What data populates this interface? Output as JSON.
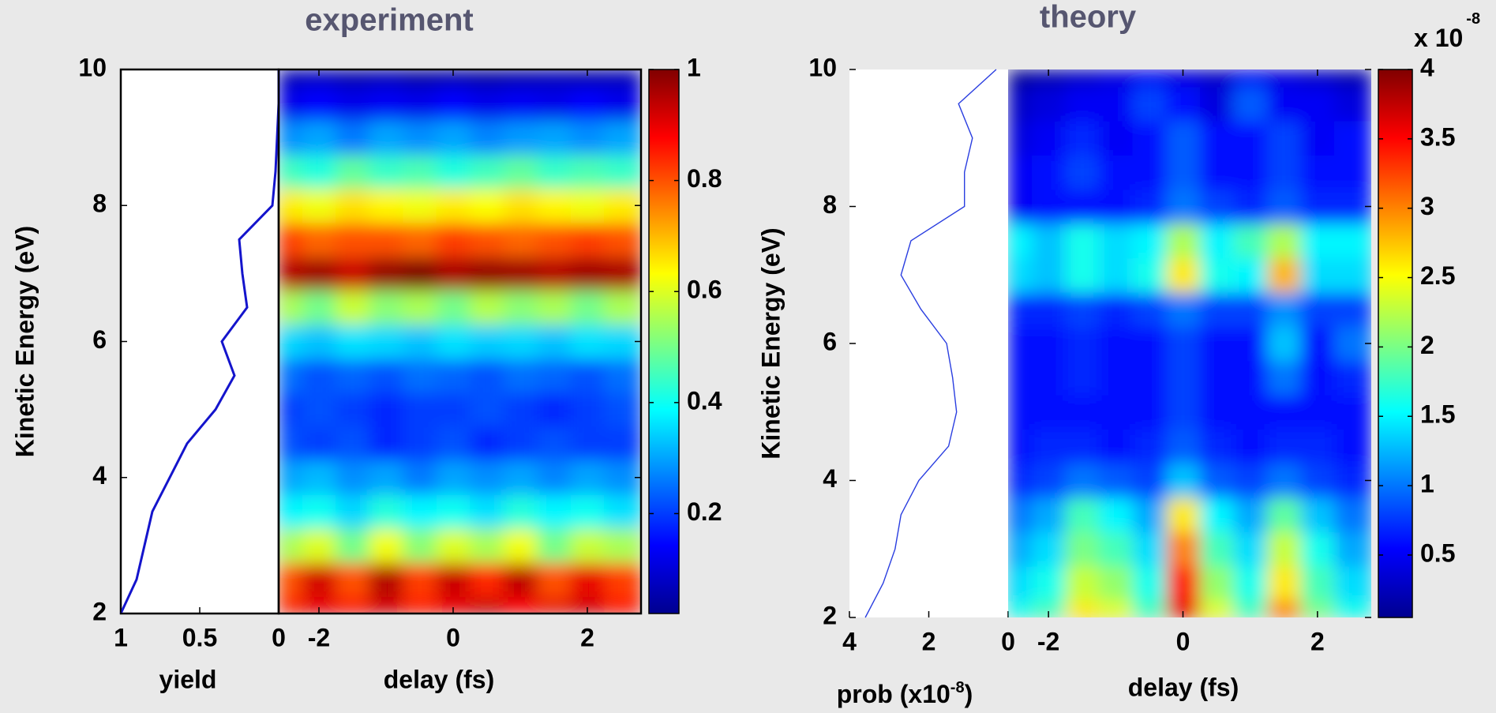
{
  "chart_data": [
    {
      "type": "line",
      "xlabel": "yield",
      "ylabel": "Kinetic Energy (eV)",
      "color": "#1414cc",
      "y": [
        2,
        2.5,
        3,
        3.5,
        4,
        4.5,
        5,
        5.5,
        6,
        6.5,
        7,
        7.5,
        8,
        8.5,
        9,
        9.5,
        10
      ],
      "values": [
        1.0,
        0.9,
        0.85,
        0.8,
        0.69,
        0.58,
        0.4,
        0.28,
        0.36,
        0.2,
        0.23,
        0.25,
        0.04,
        0.02,
        0.01,
        0.0,
        0.0
      ],
      "xlim": [
        1,
        0
      ],
      "xticks": [
        1,
        0.5,
        0
      ],
      "ylim": [
        2,
        10
      ],
      "yticks": [
        2,
        4,
        6,
        8,
        10
      ]
    },
    {
      "type": "heatmap",
      "title": "experiment",
      "xlabel": "delay (fs)",
      "colormap": "jet",
      "x": [
        -2.5,
        -2,
        -1.5,
        -1,
        -0.5,
        0,
        0.5,
        1,
        1.5,
        2,
        2.5
      ],
      "y": [
        2,
        2.5,
        3,
        3.5,
        4,
        4.5,
        5,
        5.5,
        6,
        6.5,
        7,
        7.5,
        8,
        8.5,
        9,
        9.5,
        10
      ],
      "values": [
        [
          0.85,
          0.9,
          0.88,
          0.92,
          0.86,
          0.9,
          0.93,
          0.88,
          0.9,
          0.92,
          0.87
        ],
        [
          0.8,
          0.92,
          0.8,
          0.95,
          0.82,
          0.93,
          0.84,
          0.94,
          0.8,
          0.9,
          0.82
        ],
        [
          0.55,
          0.6,
          0.5,
          0.62,
          0.52,
          0.6,
          0.55,
          0.62,
          0.5,
          0.58,
          0.55
        ],
        [
          0.38,
          0.4,
          0.35,
          0.42,
          0.38,
          0.4,
          0.36,
          0.42,
          0.38,
          0.4,
          0.36
        ],
        [
          0.3,
          0.32,
          0.28,
          0.3,
          0.26,
          0.3,
          0.28,
          0.3,
          0.27,
          0.3,
          0.28
        ],
        [
          0.22,
          0.2,
          0.22,
          0.18,
          0.2,
          0.22,
          0.18,
          0.2,
          0.22,
          0.2,
          0.2
        ],
        [
          0.2,
          0.22,
          0.2,
          0.18,
          0.2,
          0.2,
          0.22,
          0.2,
          0.18,
          0.2,
          0.22
        ],
        [
          0.25,
          0.22,
          0.24,
          0.22,
          0.25,
          0.24,
          0.22,
          0.25,
          0.24,
          0.22,
          0.25
        ],
        [
          0.35,
          0.33,
          0.36,
          0.35,
          0.33,
          0.36,
          0.34,
          0.35,
          0.33,
          0.36,
          0.35
        ],
        [
          0.55,
          0.5,
          0.58,
          0.52,
          0.55,
          0.5,
          0.56,
          0.52,
          0.55,
          0.5,
          0.55
        ],
        [
          0.95,
          0.97,
          0.93,
          0.98,
          1.0,
          0.96,
          0.98,
          0.97,
          0.95,
          0.97,
          0.96
        ],
        [
          0.82,
          0.78,
          0.8,
          0.8,
          0.78,
          0.82,
          0.8,
          0.78,
          0.8,
          0.82,
          0.8
        ],
        [
          0.65,
          0.62,
          0.66,
          0.64,
          0.62,
          0.65,
          0.63,
          0.66,
          0.64,
          0.62,
          0.65
        ],
        [
          0.45,
          0.42,
          0.48,
          0.44,
          0.46,
          0.42,
          0.45,
          0.48,
          0.44,
          0.46,
          0.44
        ],
        [
          0.28,
          0.3,
          0.26,
          0.3,
          0.28,
          0.3,
          0.27,
          0.29,
          0.3,
          0.28,
          0.3
        ],
        [
          0.12,
          0.14,
          0.12,
          0.13,
          0.12,
          0.14,
          0.12,
          0.13,
          0.12,
          0.14,
          0.12
        ],
        [
          0.06,
          0.07,
          0.05,
          0.06,
          0.04,
          0.05,
          0.04,
          0.05,
          0.06,
          0.05,
          0.06
        ]
      ],
      "xlim": [
        -2.6,
        2.8
      ],
      "xticks": [
        -2,
        0,
        2
      ],
      "ylim": [
        2,
        10
      ],
      "yticks": [
        2,
        4,
        6,
        8,
        10
      ],
      "clim": [
        0.02,
        1
      ],
      "cticks": [
        0.2,
        0.4,
        0.6,
        0.8,
        1
      ]
    },
    {
      "type": "line",
      "xlabel": {
        "text": "prob (x10",
        "sup": "-8",
        "end": ")"
      },
      "ylabel": "Kinetic Energy (eV)",
      "color": "#2a3ee0",
      "y": [
        2,
        2.5,
        3,
        3.5,
        4,
        4.5,
        5,
        5.5,
        6,
        6.5,
        7,
        7.5,
        8,
        8.5,
        9,
        9.5,
        10
      ],
      "values": [
        3.6,
        3.15,
        2.85,
        2.7,
        2.25,
        1.5,
        1.3,
        1.4,
        1.55,
        2.2,
        2.7,
        2.45,
        1.1,
        1.1,
        0.9,
        1.25,
        0.3
      ],
      "xlim": [
        4,
        0
      ],
      "xticks": [
        4,
        2,
        0
      ],
      "ylim": [
        2,
        10
      ],
      "yticks": [
        2,
        4,
        6,
        8,
        10
      ]
    },
    {
      "type": "heatmap",
      "title": "theory",
      "xlabel": "delay (fs)",
      "colormap": "jet",
      "x": [
        -2.5,
        -2,
        -1.5,
        -1,
        -0.5,
        0,
        0.5,
        1,
        1.5,
        2,
        2.5
      ],
      "y": [
        2,
        2.5,
        3,
        3.5,
        4,
        4.5,
        5,
        5.5,
        6,
        6.5,
        7,
        7.5,
        8,
        8.5,
        9,
        9.5,
        10
      ],
      "values": [
        [
          1.6,
          1.8,
          2.6,
          2.4,
          1.8,
          3.6,
          2.4,
          1.8,
          3.0,
          2.0,
          1.6
        ],
        [
          1.4,
          1.6,
          2.3,
          2.1,
          1.6,
          3.4,
          2.1,
          1.6,
          2.6,
          1.8,
          1.4
        ],
        [
          1.2,
          1.4,
          2.0,
          1.8,
          1.4,
          3.0,
          1.8,
          1.4,
          2.3,
          1.6,
          1.2
        ],
        [
          1.0,
          1.2,
          1.8,
          1.5,
          1.2,
          2.6,
          1.5,
          1.2,
          1.9,
          1.3,
          1.0
        ],
        [
          0.7,
          0.8,
          1.0,
          0.9,
          0.8,
          1.3,
          0.9,
          0.8,
          1.0,
          0.8,
          0.7
        ],
        [
          0.6,
          0.7,
          0.7,
          0.6,
          0.7,
          0.9,
          0.7,
          0.6,
          0.7,
          0.7,
          0.6
        ],
        [
          0.6,
          0.6,
          0.6,
          0.6,
          0.6,
          0.8,
          0.6,
          0.6,
          0.6,
          0.6,
          0.6
        ],
        [
          0.6,
          0.6,
          0.7,
          0.6,
          0.6,
          0.8,
          0.6,
          0.6,
          1.0,
          0.6,
          0.7
        ],
        [
          0.6,
          0.6,
          0.7,
          0.6,
          0.6,
          0.8,
          0.6,
          0.6,
          1.3,
          0.6,
          1.0
        ],
        [
          0.7,
          0.7,
          0.8,
          0.7,
          0.8,
          1.0,
          0.8,
          0.8,
          1.1,
          0.8,
          0.8
        ],
        [
          1.4,
          1.3,
          1.6,
          1.4,
          1.6,
          2.6,
          1.6,
          1.5,
          2.8,
          1.4,
          1.4
        ],
        [
          1.5,
          1.3,
          1.6,
          1.4,
          1.5,
          2.2,
          1.5,
          1.8,
          2.2,
          1.5,
          1.5
        ],
        [
          0.5,
          0.6,
          0.6,
          0.6,
          0.7,
          1.0,
          0.8,
          0.7,
          0.9,
          0.7,
          0.7
        ],
        [
          0.5,
          0.6,
          0.8,
          0.6,
          0.6,
          0.9,
          0.6,
          0.6,
          0.8,
          0.6,
          0.6
        ],
        [
          0.4,
          0.5,
          0.7,
          0.5,
          0.6,
          0.9,
          0.6,
          0.6,
          0.8,
          0.5,
          0.6
        ],
        [
          0.3,
          0.4,
          0.5,
          0.5,
          0.8,
          0.6,
          0.4,
          0.9,
          0.5,
          0.5,
          0.4
        ],
        [
          0.1,
          0.2,
          0.3,
          0.4,
          0.5,
          0.4,
          0.3,
          0.5,
          0.4,
          0.3,
          0.2
        ]
      ],
      "xlim": [
        -2.6,
        2.8
      ],
      "xticks": [
        -2,
        0,
        2
      ],
      "ylim": [
        2,
        10
      ],
      "yticks": [
        2,
        4,
        6,
        8,
        10
      ],
      "clim": [
        0.05,
        4
      ],
      "cticks": [
        0.5,
        1,
        1.5,
        2,
        2.5,
        3,
        3.5,
        4
      ],
      "cmultiplier": {
        "base": "x 10",
        "exponent": "-8"
      }
    }
  ]
}
